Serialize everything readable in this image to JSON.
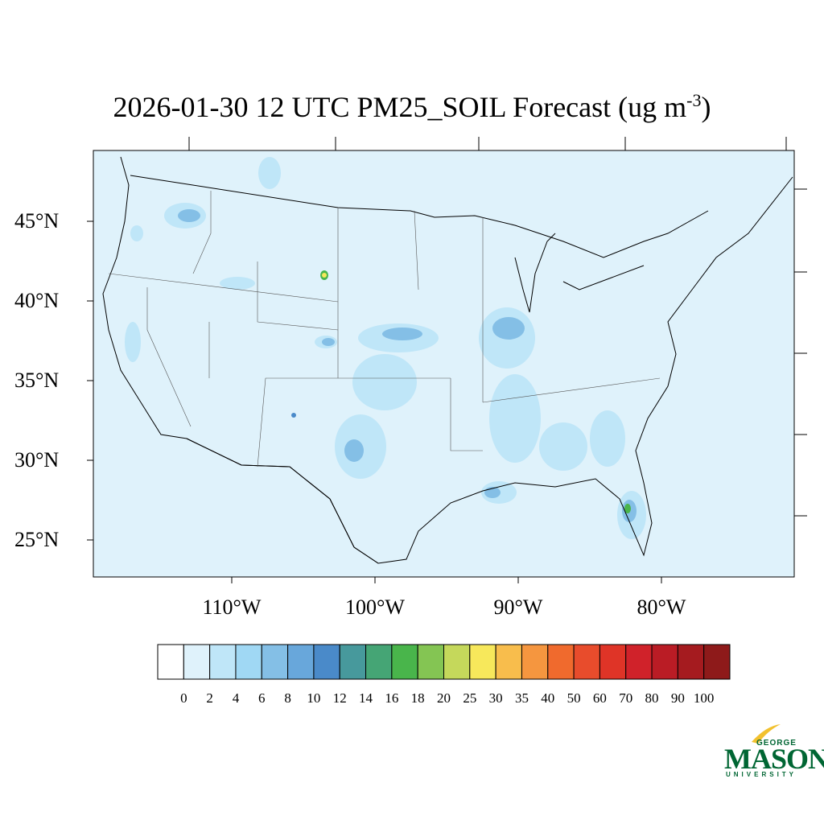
{
  "title": {
    "main": "2026-01-30 12 UTC PM25_SOIL Forecast (ug m",
    "superscript": "-3",
    "close": ")"
  },
  "map": {
    "background_color": "#dff2fb",
    "lat_labels": [
      "45°N",
      "40°N",
      "35°N",
      "30°N",
      "25°N"
    ],
    "lon_labels": [
      "110°W",
      "100°W",
      "90°W",
      "80°W"
    ]
  },
  "colorbar": {
    "levels": [
      "0",
      "2",
      "4",
      "6",
      "8",
      "10",
      "12",
      "14",
      "16",
      "18",
      "20",
      "25",
      "30",
      "35",
      "40",
      "50",
      "60",
      "70",
      "80",
      "90",
      "100"
    ],
    "colors": [
      "#ffffff",
      "#dff2fb",
      "#bfe6f8",
      "#a0d8f4",
      "#84bfe6",
      "#68a7db",
      "#4a8ac9",
      "#47999c",
      "#45a575",
      "#49b54b",
      "#84c553",
      "#c5d85b",
      "#f7e85b",
      "#f8bd4c",
      "#f5963f",
      "#f06a2d",
      "#e84c2c",
      "#df3427",
      "#d0222a",
      "#ba1c25",
      "#a51b1f",
      "#8e1a1a"
    ]
  },
  "logo": {
    "line1": "GEORGE",
    "line2": "MASON",
    "line3": "UNIVERSITY"
  }
}
